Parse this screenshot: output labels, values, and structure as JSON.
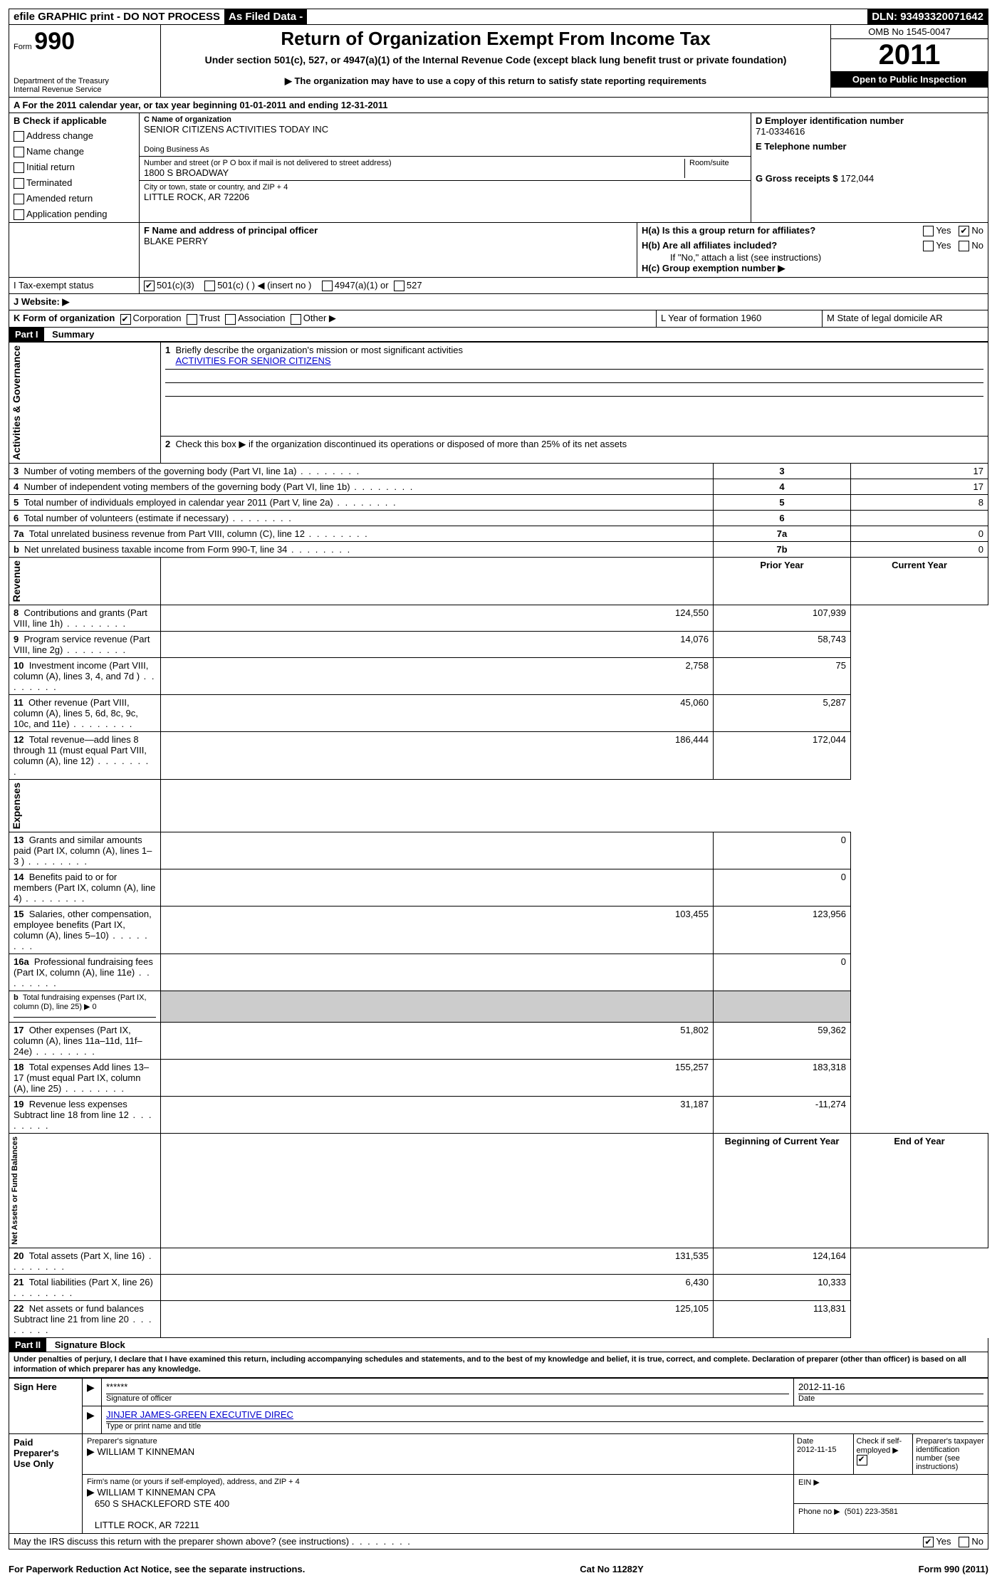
{
  "topbar": {
    "efile": "efile GRAPHIC print - DO NOT PROCESS",
    "asfiled": "As Filed Data -",
    "dln_label": "DLN:",
    "dln": "93493320071642"
  },
  "header": {
    "form_label": "Form",
    "form_num": "990",
    "dept1": "Department of the Treasury",
    "dept2": "Internal Revenue Service",
    "title": "Return of Organization Exempt From Income Tax",
    "subtitle": "Under section 501(c), 527, or 4947(a)(1) of the Internal Revenue Code (except black lung benefit trust or private foundation)",
    "note": "▶ The organization may have to use a copy of this return to satisfy state reporting requirements",
    "omb": "OMB No 1545-0047",
    "year": "2011",
    "open": "Open to Public Inspection"
  },
  "sectionA": {
    "a_line": "A  For the 2011 calendar year, or tax year beginning 01-01-2011    and ending 12-31-2011",
    "b_label": "B  Check if applicable",
    "b_items": [
      "Address change",
      "Name change",
      "Initial return",
      "Terminated",
      "Amended return",
      "Application pending"
    ],
    "c_label": "C Name of organization",
    "c_name": "SENIOR CITIZENS ACTIVITIES TODAY INC",
    "dba_label": "Doing Business As",
    "street_label": "Number and street (or P O  box if mail is not delivered to street address)",
    "room_label": "Room/suite",
    "street": "1800 S BROADWAY",
    "city_label": "City or town, state or country, and ZIP + 4",
    "city": "LITTLE ROCK, AR  72206",
    "d_label": "D Employer identification number",
    "d_ein": "71-0334616",
    "e_label": "E Telephone number",
    "g_label": "G Gross receipts $",
    "g_val": "172,044",
    "f_label": "F   Name and address of principal officer",
    "f_name": "BLAKE PERRY",
    "ha_label": "H(a)  Is this a group return for affiliates?",
    "hb_label": "H(b)  Are all affiliates included?",
    "hb_note": "If \"No,\" attach a list  (see instructions)",
    "hc_label": "H(c)   Group exemption number ▶",
    "yes": "Yes",
    "no": "No",
    "i_label": "I   Tax-exempt status",
    "i_501c3": "501(c)(3)",
    "i_501c": "501(c) (   ) ◀ (insert no )",
    "i_4947": "4947(a)(1) or",
    "i_527": "527",
    "j_label": "J  Website: ▶",
    "k_label": "K Form of organization",
    "k_corp": "Corporation",
    "k_trust": "Trust",
    "k_assoc": "Association",
    "k_other": "Other ▶",
    "l_label": "L Year of formation  1960",
    "m_label": "M State of legal domicile  AR"
  },
  "part1": {
    "header": "Part I",
    "title": "Summary",
    "line1_label": "Briefly describe the organization's mission or most significant activities",
    "line1_val": "ACTIVITIES FOR SENIOR CITIZENS",
    "line2": "Check this box ▶     if the organization discontinued its operations or disposed of more than 25% of its net assets",
    "vert_ag": "Activities & Governance",
    "vert_rev": "Revenue",
    "vert_exp": "Expenses",
    "vert_na": "Net Assets or Fund Balances",
    "rows_ag": [
      {
        "n": "3",
        "label": "Number of voting members of the governing body (Part VI, line 1a)",
        "box": "3",
        "val": "17"
      },
      {
        "n": "4",
        "label": "Number of independent voting members of the governing body (Part VI, line 1b)",
        "box": "4",
        "val": "17"
      },
      {
        "n": "5",
        "label": "Total number of individuals employed in calendar year 2011 (Part V, line 2a)",
        "box": "5",
        "val": "8"
      },
      {
        "n": "6",
        "label": "Total number of volunteers (estimate if necessary)",
        "box": "6",
        "val": ""
      },
      {
        "n": "7a",
        "label": "Total unrelated business revenue from Part VIII, column (C), line 12",
        "box": "7a",
        "val": "0"
      },
      {
        "n": "b",
        "label": "Net unrelated business taxable income from Form 990-T, line 34",
        "box": "7b",
        "val": "0"
      }
    ],
    "col_prior": "Prior Year",
    "col_current": "Current Year",
    "rows_rev": [
      {
        "n": "8",
        "label": "Contributions and grants (Part VIII, line 1h)",
        "py": "124,550",
        "cy": "107,939"
      },
      {
        "n": "9",
        "label": "Program service revenue (Part VIII, line 2g)",
        "py": "14,076",
        "cy": "58,743"
      },
      {
        "n": "10",
        "label": "Investment income (Part VIII, column (A), lines 3, 4, and 7d )",
        "py": "2,758",
        "cy": "75"
      },
      {
        "n": "11",
        "label": "Other revenue (Part VIII, column (A), lines 5, 6d, 8c, 9c, 10c, and 11e)",
        "py": "45,060",
        "cy": "5,287"
      },
      {
        "n": "12",
        "label": "Total revenue—add lines 8 through 11 (must equal Part VIII, column (A), line 12)",
        "py": "186,444",
        "cy": "172,044"
      }
    ],
    "rows_exp": [
      {
        "n": "13",
        "label": "Grants and similar amounts paid (Part IX, column (A), lines 1–3 )",
        "py": "",
        "cy": "0"
      },
      {
        "n": "14",
        "label": "Benefits paid to or for members (Part IX, column (A), line 4)",
        "py": "",
        "cy": "0"
      },
      {
        "n": "15",
        "label": "Salaries, other compensation, employee benefits (Part IX, column (A), lines 5–10)",
        "py": "103,455",
        "cy": "123,956"
      },
      {
        "n": "16a",
        "label": "Professional fundraising fees (Part IX, column (A), line 11e)",
        "py": "",
        "cy": "0"
      },
      {
        "n": "b",
        "label": "Total fundraising expenses (Part IX, column (D), line 25) ▶ 0",
        "py": "",
        "cy": "",
        "nopycy": true,
        "small": true
      },
      {
        "n": "17",
        "label": "Other expenses (Part IX, column (A), lines 11a–11d, 11f–24e)",
        "py": "51,802",
        "cy": "59,362"
      },
      {
        "n": "18",
        "label": "Total expenses  Add lines 13–17 (must equal Part IX, column (A), line 25)",
        "py": "155,257",
        "cy": "183,318"
      },
      {
        "n": "19",
        "label": "Revenue less expenses  Subtract line 18 from line 12",
        "py": "31,187",
        "cy": "-11,274"
      }
    ],
    "col_boy": "Beginning of Current Year",
    "col_eoy": "End of Year",
    "rows_na": [
      {
        "n": "20",
        "label": "Total assets (Part X, line 16)",
        "py": "131,535",
        "cy": "124,164"
      },
      {
        "n": "21",
        "label": "Total liabilities (Part X, line 26)",
        "py": "6,430",
        "cy": "10,333"
      },
      {
        "n": "22",
        "label": "Net assets or fund balances  Subtract line 21 from line 20",
        "py": "125,105",
        "cy": "113,831"
      }
    ]
  },
  "part2": {
    "header": "Part II",
    "title": "Signature Block",
    "perjury": "Under penalties of perjury, I declare that I have examined this return, including accompanying schedules and statements, and to the best of my knowledge and belief, it is true, correct, and complete. Declaration of preparer (other than officer) is based on all information of which preparer has any knowledge.",
    "sign_here": "Sign Here",
    "sig_stars": "******",
    "sig_officer_label": "Signature of officer",
    "sig_date": "2012-11-16",
    "date_label": "Date",
    "officer_name": "JINJER JAMES-GREEN EXECUTIVE DIREC",
    "type_name_label": "Type or print name and title",
    "paid_label": "Paid Preparer's Use Only",
    "prep_sig_label": "Preparer's signature",
    "prep_name": "WILLIAM T KINNEMAN",
    "prep_date": "2012-11-15",
    "self_emp_label": "Check if self-employed ▶",
    "ptin_label": "Preparer's taxpayer identification number (see instructions)",
    "firm_label": "Firm's name (or yours if self-employed), address, and ZIP + 4",
    "firm_name": "WILLIAM T KINNEMAN CPA",
    "firm_addr1": "650 S SHACKLEFORD STE 400",
    "firm_addr2": "LITTLE ROCK, AR  72211",
    "ein_label": "EIN ▶",
    "phone_label": "Phone no  ▶",
    "phone": "(501) 223-3581",
    "irs_discuss": "May the IRS discuss this return with the preparer shown above? (see instructions)"
  },
  "footer": {
    "left": "For Paperwork Reduction Act Notice, see the separate instructions.",
    "mid": "Cat No  11282Y",
    "right": "Form 990 (2011)"
  }
}
